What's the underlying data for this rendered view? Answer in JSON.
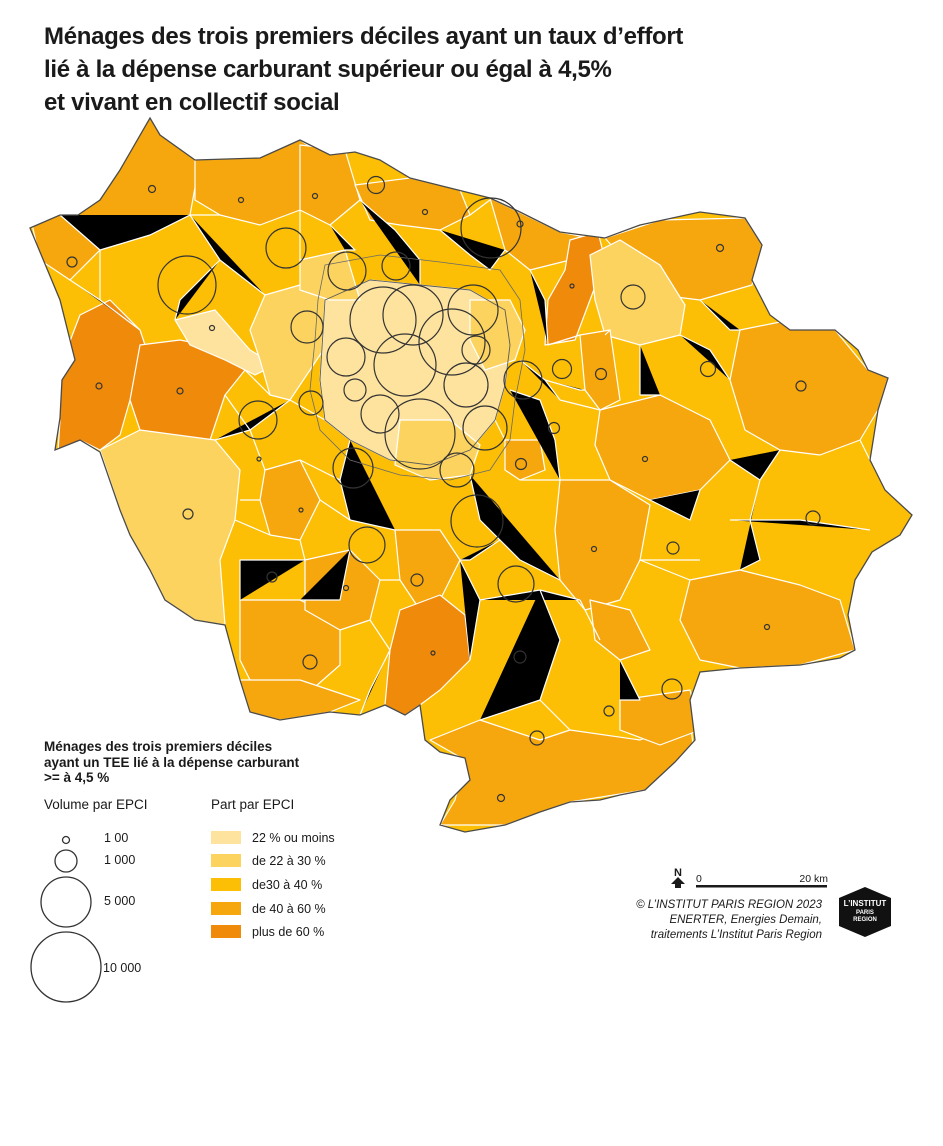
{
  "title_lines": [
    "Ménages des trois premiers déciles ayant un taux d’effort",
    "lié à la dépense carburant supérieur ou égal à 4,5%",
    "et vivant en collectif social"
  ],
  "legend": {
    "heading_lines": [
      "Ménages des trois premiers déciles",
      "ayant un TEE lié à la dépense carburant",
      ">= à 4,5 %"
    ],
    "volume": {
      "title": "Volume par EPCI",
      "items": [
        {
          "label": "1 00",
          "value": 100
        },
        {
          "label": "1 000",
          "value": 1000
        },
        {
          "label": "5 000",
          "value": 5000
        },
        {
          "label": "10 000",
          "value": 10000
        }
      ]
    },
    "share": {
      "title": "Part par EPCI",
      "items": [
        {
          "label": "22 % ou moins",
          "color": "#fee39f"
        },
        {
          "label": "de 22 à  30 %",
          "color": "#fdd35f"
        },
        {
          "label": "de30 à 40 %",
          "color": "#fcbf05"
        },
        {
          "label": "de 40 à 60 %",
          "color": "#f6a70e"
        },
        {
          "label": "plus de 60 %",
          "color": "#f08a0b"
        }
      ]
    }
  },
  "scale_bar": {
    "north_label": "N",
    "start_label": "0",
    "end_label": "20 km"
  },
  "credits_lines": [
    "© L’INSTITUT PARIS REGION 2023",
    "ENERTER, Energies Demain,",
    "traitements L’Institut Paris Region"
  ],
  "logo": {
    "line1": "L’INSTITUT",
    "line2": "PARIS",
    "line3": "REGION",
    "color": "#111111"
  },
  "colors": {
    "outline": "#4a4a4a",
    "border": "#ffffff",
    "circle": "#333333"
  }
}
